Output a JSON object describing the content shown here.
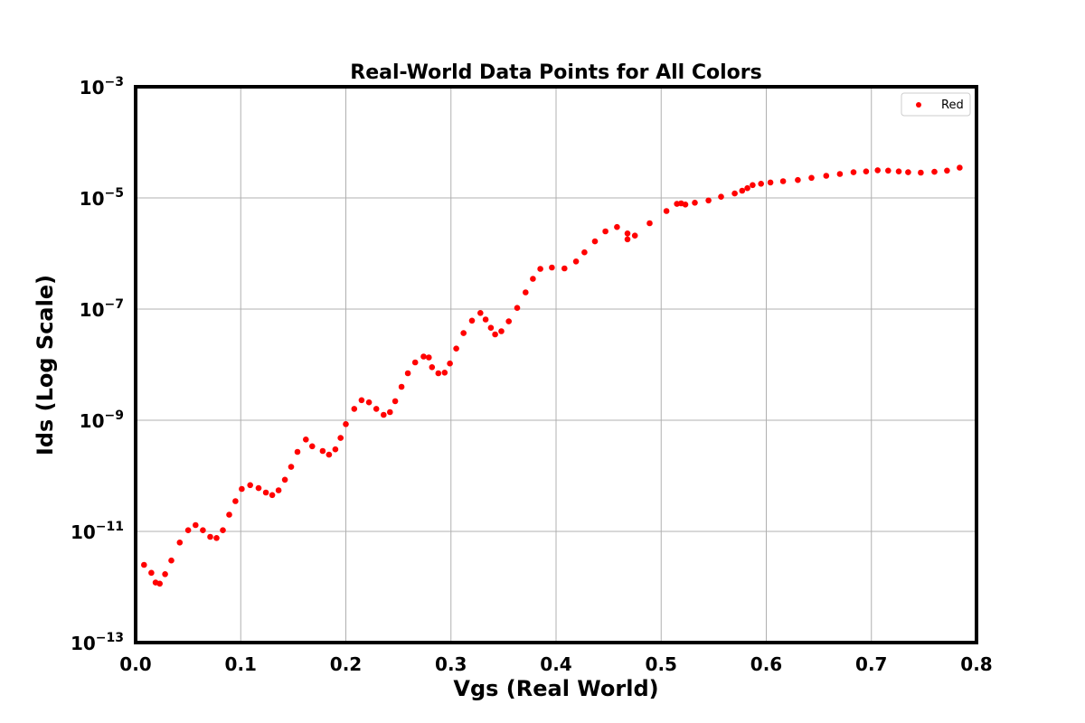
{
  "chart_data": {
    "type": "scatter",
    "title": "Real-World Data Points for All Colors",
    "xlabel": "Vgs (Real World)",
    "ylabel": "Ids (Log Scale)",
    "x_scale": "linear",
    "y_scale": "log",
    "xlim": [
      0.0,
      0.8
    ],
    "ylim": [
      1e-13,
      0.001
    ],
    "x_ticks": [
      "0.0",
      "0.1",
      "0.2",
      "0.3",
      "0.4",
      "0.5",
      "0.6",
      "0.7",
      "0.8"
    ],
    "y_ticks": [
      {
        "base": "10",
        "exp": "−13",
        "value": 1e-13
      },
      {
        "base": "10",
        "exp": "−11",
        "value": 1e-11
      },
      {
        "base": "10",
        "exp": "−9",
        "value": 1e-09
      },
      {
        "base": "10",
        "exp": "−7",
        "value": 1e-07
      },
      {
        "base": "10",
        "exp": "−5",
        "value": 1e-05
      },
      {
        "base": "10",
        "exp": "−3",
        "value": 0.001
      }
    ],
    "grid": true,
    "legend_position": "upper-right",
    "marker_color": "#ff0000",
    "series": [
      {
        "name": "Red",
        "color": "#ff0000",
        "points": [
          [
            0.008,
            2.5e-12
          ],
          [
            0.015,
            1.8e-12
          ],
          [
            0.019,
            1.2e-12
          ],
          [
            0.023,
            1.15e-12
          ],
          [
            0.028,
            1.7e-12
          ],
          [
            0.034,
            3e-12
          ],
          [
            0.042,
            6.3e-12
          ],
          [
            0.05,
            1.05e-11
          ],
          [
            0.057,
            1.3e-11
          ],
          [
            0.064,
            1.05e-11
          ],
          [
            0.071,
            8e-12
          ],
          [
            0.077,
            7.6e-12
          ],
          [
            0.083,
            1.05e-11
          ],
          [
            0.089,
            2e-11
          ],
          [
            0.095,
            3.5e-11
          ],
          [
            0.101,
            5.8e-11
          ],
          [
            0.109,
            6.8e-11
          ],
          [
            0.117,
            6e-11
          ],
          [
            0.124,
            5e-11
          ],
          [
            0.13,
            4.5e-11
          ],
          [
            0.136,
            5.5e-11
          ],
          [
            0.142,
            8.5e-11
          ],
          [
            0.148,
            1.45e-10
          ],
          [
            0.154,
            2.7e-10
          ],
          [
            0.162,
            4.5e-10
          ],
          [
            0.168,
            3.4e-10
          ],
          [
            0.178,
            2.8e-10
          ],
          [
            0.184,
            2.4e-10
          ],
          [
            0.19,
            3e-10
          ],
          [
            0.195,
            4.8e-10
          ],
          [
            0.2,
            8.5e-10
          ],
          [
            0.208,
            1.6e-09
          ],
          [
            0.215,
            2.3e-09
          ],
          [
            0.222,
            2.1e-09
          ],
          [
            0.229,
            1.6e-09
          ],
          [
            0.236,
            1.25e-09
          ],
          [
            0.242,
            1.4e-09
          ],
          [
            0.247,
            2.2e-09
          ],
          [
            0.253,
            4e-09
          ],
          [
            0.259,
            7e-09
          ],
          [
            0.266,
            1.1e-08
          ],
          [
            0.274,
            1.4e-08
          ],
          [
            0.279,
            1.35e-08
          ],
          [
            0.282,
            9e-09
          ],
          [
            0.288,
            7e-09
          ],
          [
            0.294,
            7.2e-09
          ],
          [
            0.299,
            1.05e-08
          ],
          [
            0.305,
            1.95e-08
          ],
          [
            0.312,
            3.7e-08
          ],
          [
            0.32,
            6.2e-08
          ],
          [
            0.328,
            8.5e-08
          ],
          [
            0.333,
            6.5e-08
          ],
          [
            0.338,
            4.6e-08
          ],
          [
            0.342,
            3.5e-08
          ],
          [
            0.348,
            4e-08
          ],
          [
            0.355,
            6e-08
          ],
          [
            0.363,
            1.05e-07
          ],
          [
            0.371,
            2e-07
          ],
          [
            0.378,
            3.5e-07
          ],
          [
            0.385,
            5.3e-07
          ],
          [
            0.396,
            5.6e-07
          ],
          [
            0.408,
            5.4e-07
          ],
          [
            0.419,
            7.2e-07
          ],
          [
            0.427,
            1.05e-06
          ],
          [
            0.437,
            1.65e-06
          ],
          [
            0.447,
            2.5e-06
          ],
          [
            0.458,
            3e-06
          ],
          [
            0.468,
            2.3e-06
          ],
          [
            0.468,
            1.8e-06
          ],
          [
            0.475,
            2.1e-06
          ],
          [
            0.489,
            3.5e-06
          ],
          [
            0.505,
            5.8e-06
          ],
          [
            0.515,
            7.8e-06
          ],
          [
            0.519,
            8e-06
          ],
          [
            0.523,
            7.6e-06
          ],
          [
            0.532,
            8.2e-06
          ],
          [
            0.545,
            9e-06
          ],
          [
            0.557,
            1.05e-05
          ],
          [
            0.57,
            1.2e-05
          ],
          [
            0.577,
            1.35e-05
          ],
          [
            0.582,
            1.5e-05
          ],
          [
            0.587,
            1.7e-05
          ],
          [
            0.595,
            1.8e-05
          ],
          [
            0.604,
            1.9e-05
          ],
          [
            0.616,
            2e-05
          ],
          [
            0.63,
            2.1e-05
          ],
          [
            0.643,
            2.3e-05
          ],
          [
            0.657,
            2.5e-05
          ],
          [
            0.67,
            2.7e-05
          ],
          [
            0.683,
            2.9e-05
          ],
          [
            0.695,
            3e-05
          ],
          [
            0.706,
            3.15e-05
          ],
          [
            0.716,
            3.1e-05
          ],
          [
            0.726,
            3e-05
          ],
          [
            0.735,
            2.9e-05
          ],
          [
            0.747,
            2.85e-05
          ],
          [
            0.76,
            2.95e-05
          ],
          [
            0.772,
            3.1e-05
          ],
          [
            0.784,
            3.5e-05
          ]
        ]
      }
    ]
  }
}
